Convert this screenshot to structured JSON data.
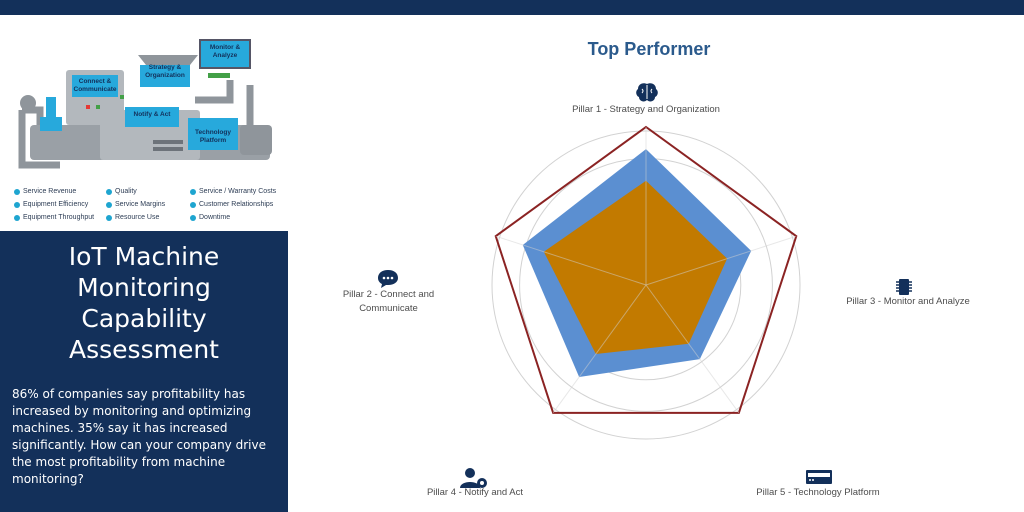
{
  "header": {
    "accent": "#13305a"
  },
  "illustration": {
    "labels": {
      "monitor": "Monitor & Analyze",
      "strategy": "Strategy & Organization",
      "connect": "Connect & Communicate",
      "notify": "Notify & Act",
      "technology": "Technology Platform"
    },
    "legend": [
      [
        "Service Revenue",
        "Equipment Efficiency",
        "Equipment Throughput"
      ],
      [
        "Quality",
        "Service Margins",
        "Resource Use"
      ],
      [
        "Service / Warranty Costs",
        "Customer Relationships",
        "Downtime"
      ]
    ]
  },
  "panel": {
    "title_lines": [
      "IoT Machine",
      "Monitoring",
      "Capability",
      "Assessment"
    ],
    "body": "86% of companies say profitability has increased by monitoring and optimizing machines. 35% say it has increased significantly. How can your company drive the most profitability from machine monitoring?"
  },
  "chart_data": {
    "type": "radar",
    "title": "Top Performer",
    "axes": [
      {
        "label": "Pillar 1 - Strategy and Organization",
        "icon": "brain-icon"
      },
      {
        "label": "Pillar 3 - Monitor and Analyze",
        "icon": "chip-icon"
      },
      {
        "label": "Pillar 5 - Technology Platform",
        "icon": "server-icon"
      },
      {
        "label": "Pillar 4 - Notify and Act",
        "icon": "user-gear-icon"
      },
      {
        "label": "Pillar 2 - Connect and Communicate",
        "icon": "chat-icon"
      }
    ],
    "max": 5,
    "rings": 5,
    "series": [
      {
        "values": [
          5,
          5,
          5,
          5,
          5
        ],
        "color": "#8b2323",
        "style": "outline"
      },
      {
        "values": [
          4.3,
          3.5,
          2.9,
          3.6,
          4.1
        ],
        "color": "#5b8fd1",
        "style": "fill"
      },
      {
        "values": [
          3.3,
          2.7,
          2.3,
          2.7,
          3.4
        ],
        "color": "#c27a00",
        "style": "fill"
      }
    ]
  }
}
